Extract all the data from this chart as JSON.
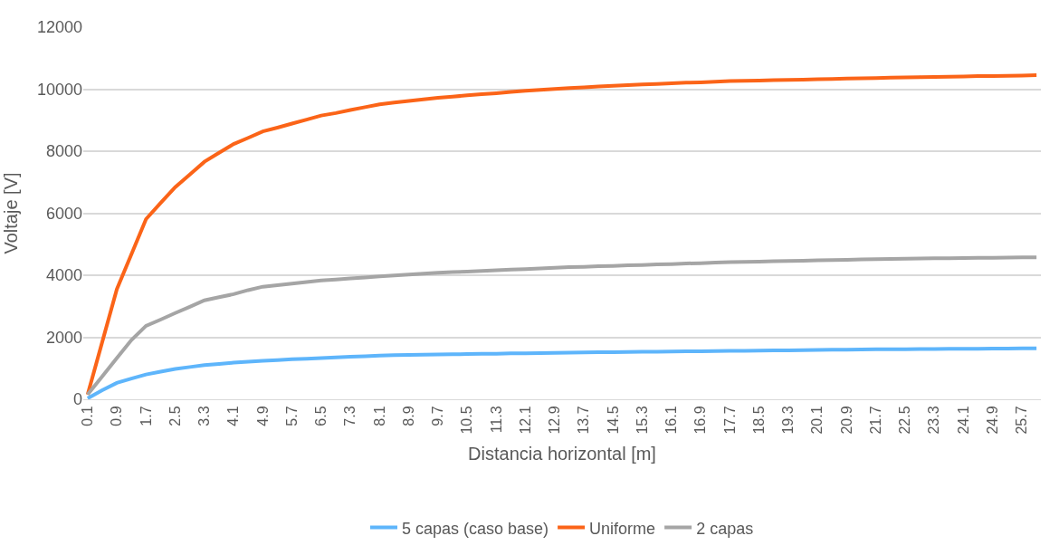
{
  "chart_data": {
    "type": "line",
    "xlabel": "Distancia horizontal [m]",
    "ylabel": "Voltaje [V]",
    "categories": [
      "0.1",
      null,
      "0.9",
      null,
      "1.7",
      null,
      "2.5",
      null,
      "3.3",
      null,
      "4.1",
      null,
      "4.9",
      null,
      "5.7",
      null,
      "6.5",
      null,
      "7.3",
      null,
      "8.1",
      null,
      "8.9",
      null,
      "9.7",
      null,
      "10.5",
      null,
      "11.3",
      null,
      "12.1",
      null,
      "12.9",
      null,
      "13.7",
      null,
      "14.5",
      null,
      "15.3",
      null,
      "16.1",
      null,
      "16.9",
      null,
      "17.7",
      null,
      "18.5",
      null,
      "19.3",
      null,
      "20.1",
      null,
      "20.9",
      null,
      "21.7",
      null,
      "22.5",
      null,
      "23.3",
      null,
      "24.1",
      null,
      "24.9",
      null,
      "25.7",
      null
    ],
    "series": [
      {
        "name": "5 capas (caso base)",
        "color": "#5eb5fb",
        "values": [
          30,
          290,
          530,
          670,
          800,
          890,
          980,
          1040,
          1100,
          1140,
          1180,
          1210,
          1240,
          1260,
          1290,
          1310,
          1330,
          1350,
          1370,
          1390,
          1410,
          1420,
          1430,
          1440,
          1445,
          1450,
          1460,
          1465,
          1470,
          1480,
          1485,
          1490,
          1500,
          1505,
          1510,
          1515,
          1520,
          1525,
          1530,
          1535,
          1540,
          1545,
          1550,
          1555,
          1560,
          1565,
          1570,
          1575,
          1580,
          1585,
          1590,
          1595,
          1600,
          1605,
          1610,
          1612,
          1615,
          1620,
          1622,
          1625,
          1628,
          1630,
          1635,
          1638,
          1640,
          1645
        ]
      },
      {
        "name": "Uniforme",
        "color": "#fb6418",
        "values": [
          150,
          1850,
          3550,
          4680,
          5810,
          6330,
          6840,
          7250,
          7660,
          7950,
          8230,
          8430,
          8640,
          8760,
          8890,
          9020,
          9150,
          9230,
          9330,
          9420,
          9510,
          9570,
          9620,
          9670,
          9720,
          9760,
          9800,
          9840,
          9870,
          9910,
          9950,
          9980,
          10010,
          10040,
          10060,
          10090,
          10110,
          10130,
          10150,
          10170,
          10190,
          10210,
          10220,
          10240,
          10260,
          10270,
          10280,
          10290,
          10300,
          10310,
          10320,
          10330,
          10340,
          10350,
          10360,
          10370,
          10380,
          10390,
          10395,
          10400,
          10410,
          10420,
          10425,
          10430,
          10440,
          10450
        ]
      },
      {
        "name": "2 capas",
        "color": "#a5a5a5",
        "values": [
          150,
          740,
          1330,
          1910,
          2370,
          2570,
          2780,
          2980,
          3190,
          3290,
          3390,
          3520,
          3630,
          3680,
          3730,
          3780,
          3830,
          3860,
          3900,
          3930,
          3960,
          3990,
          4020,
          4050,
          4080,
          4100,
          4120,
          4140,
          4160,
          4180,
          4200,
          4220,
          4240,
          4260,
          4270,
          4290,
          4300,
          4320,
          4330,
          4350,
          4360,
          4380,
          4390,
          4410,
          4420,
          4430,
          4440,
          4450,
          4460,
          4470,
          4480,
          4490,
          4500,
          4510,
          4520,
          4525,
          4530,
          4540,
          4545,
          4550,
          4555,
          4560,
          4565,
          4570,
          4575,
          4580
        ]
      }
    ],
    "ylim": [
      0,
      12000
    ],
    "yticks": [
      0,
      2000,
      4000,
      6000,
      8000,
      10000,
      12000
    ],
    "grid": "y",
    "legend": "bottom",
    "marker": "none",
    "line_style": "solid"
  }
}
